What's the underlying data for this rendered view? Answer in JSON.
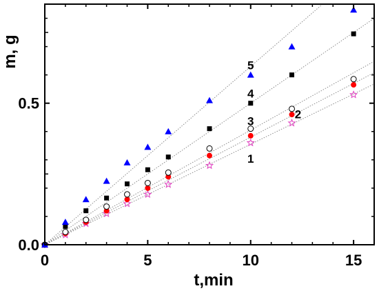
{
  "chart_data": {
    "type": "scatter",
    "title": "",
    "xlabel": "t,min",
    "ylabel": "m, g",
    "xlim": [
      0,
      16
    ],
    "ylim": [
      0,
      0.85
    ],
    "xticks": [
      0,
      5,
      10,
      15
    ],
    "yticks": [
      0.0,
      0.5
    ],
    "ytick_labels": [
      "0.0",
      "0.5"
    ],
    "grid": false,
    "legend": "none",
    "series": [
      {
        "label": "1",
        "marker": "star-open",
        "color": "#e040c0",
        "x": [
          0,
          1,
          2,
          3,
          4,
          5,
          6,
          8,
          10,
          12,
          15
        ],
        "y": [
          0,
          0.035,
          0.075,
          0.11,
          0.145,
          0.178,
          0.213,
          0.28,
          0.36,
          0.43,
          0.53
        ]
      },
      {
        "label": "2",
        "marker": "circle-filled",
        "color": "#ff0000",
        "x": [
          0,
          1,
          2,
          3,
          4,
          5,
          6,
          8,
          10,
          12,
          15
        ],
        "y": [
          0,
          0.04,
          0.08,
          0.12,
          0.16,
          0.2,
          0.24,
          0.315,
          0.385,
          0.46,
          0.565
        ]
      },
      {
        "label": "3",
        "marker": "circle-open",
        "color": "#000000",
        "x": [
          0,
          1,
          2,
          3,
          4,
          5,
          6,
          8,
          10,
          12,
          15
        ],
        "y": [
          0,
          0.045,
          0.088,
          0.135,
          0.178,
          0.218,
          0.255,
          0.34,
          0.41,
          0.48,
          0.585
        ]
      },
      {
        "label": "4",
        "marker": "square-filled",
        "color": "#000000",
        "x": [
          0,
          1,
          2,
          3,
          4,
          5,
          6,
          8,
          10,
          12,
          15
        ],
        "y": [
          0,
          0.065,
          0.12,
          0.165,
          0.215,
          0.265,
          0.31,
          0.41,
          0.5,
          0.6,
          0.745
        ]
      },
      {
        "label": "5",
        "marker": "triangle-filled",
        "color": "#0000ff",
        "x": [
          0,
          1,
          2,
          3,
          4,
          5,
          6,
          8,
          10,
          12,
          15
        ],
        "y": [
          0,
          0.08,
          0.16,
          0.225,
          0.29,
          0.345,
          0.4,
          0.51,
          0.6,
          0.7,
          0.83
        ]
      }
    ],
    "fit_lines": [
      {
        "series": "1",
        "slope": 0.0355
      },
      {
        "series": "2",
        "slope": 0.038
      },
      {
        "series": "3",
        "slope": 0.0405
      },
      {
        "series": "4",
        "slope": 0.05
      },
      {
        "series": "5",
        "slope": 0.063
      }
    ],
    "series_labels": [
      {
        "text": "5",
        "x": 10,
        "y": 0.635
      },
      {
        "text": "4",
        "x": 10,
        "y": 0.535
      },
      {
        "text": "3",
        "x": 10,
        "y": 0.437
      },
      {
        "text": "2",
        "x": 12.3,
        "y": 0.462
      },
      {
        "text": "1",
        "x": 10,
        "y": 0.305
      }
    ]
  }
}
